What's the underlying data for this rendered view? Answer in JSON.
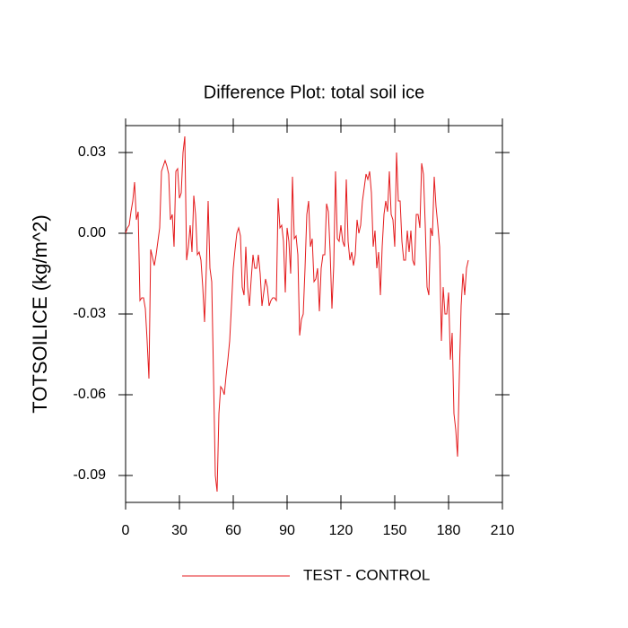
{
  "chart_data": {
    "type": "line",
    "title": "Difference Plot: total soil ice",
    "ylabel": "TOTSOILICE  (kg/m^2)",
    "xlim": [
      0,
      210
    ],
    "xticks": [
      0,
      30,
      60,
      90,
      120,
      150,
      180,
      210
    ],
    "ylim": [
      -0.1,
      0.04
    ],
    "yticks": [
      -0.09,
      -0.06,
      -0.03,
      {
        "value": 0,
        "label": "0.00"
      },
      0.03
    ],
    "x": [
      0,
      1,
      2,
      3,
      4,
      5,
      6,
      7,
      8,
      9,
      10,
      11,
      12,
      13,
      14,
      15,
      16,
      17,
      18,
      19,
      20,
      21,
      22,
      23,
      24,
      25,
      26,
      27,
      28,
      29,
      30,
      31,
      32,
      33,
      34,
      35,
      36,
      37,
      38,
      39,
      40,
      41,
      42,
      43,
      44,
      45,
      46,
      47,
      48,
      49,
      50,
      51,
      52,
      53,
      54,
      55,
      56,
      57,
      58,
      59,
      60,
      61,
      62,
      63,
      64,
      65,
      66,
      67,
      68,
      69,
      70,
      71,
      72,
      73,
      74,
      75,
      76,
      77,
      78,
      79,
      80,
      81,
      82,
      83,
      84,
      85,
      86,
      87,
      88,
      89,
      90,
      91,
      92,
      93,
      94,
      95,
      96,
      97,
      98,
      99,
      100,
      101,
      102,
      103,
      104,
      105,
      106,
      107,
      108,
      109,
      110,
      111,
      112,
      113,
      114,
      115,
      116,
      117,
      118,
      119,
      120,
      121,
      122,
      123,
      124,
      125,
      126,
      127,
      128,
      129,
      130,
      131,
      132,
      133,
      134,
      135,
      136,
      137,
      138,
      139,
      140,
      141,
      142,
      143,
      144,
      145,
      146,
      147,
      148,
      149,
      150,
      151,
      152,
      153,
      154,
      155,
      156,
      157,
      158,
      159,
      160,
      161,
      162,
      163,
      164,
      165,
      166,
      167,
      168,
      169,
      170,
      171,
      172,
      173,
      174,
      175,
      176,
      177,
      178,
      179,
      180,
      181,
      182,
      183,
      184,
      185,
      186,
      187,
      188,
      189,
      190,
      191
    ],
    "series": [
      {
        "name": "TEST - CONTROL",
        "color": "#e41a1c",
        "values": [
          0.0,
          0.002,
          0.003,
          0.008,
          0.012,
          0.019,
          0.005,
          0.008,
          -0.025,
          -0.024,
          -0.024,
          -0.028,
          -0.04,
          -0.054,
          -0.006,
          -0.009,
          -0.012,
          -0.008,
          -0.003,
          0.002,
          0.023,
          0.025,
          0.027,
          0.025,
          0.022,
          0.005,
          0.007,
          -0.005,
          0.023,
          0.024,
          0.013,
          0.015,
          0.03,
          0.036,
          -0.01,
          -0.005,
          0.003,
          -0.007,
          0.014,
          0.007,
          -0.008,
          -0.007,
          -0.01,
          -0.02,
          -0.033,
          -0.013,
          0.012,
          -0.013,
          -0.018,
          -0.053,
          -0.09,
          -0.096,
          -0.067,
          -0.057,
          -0.058,
          -0.06,
          -0.053,
          -0.047,
          -0.04,
          -0.027,
          -0.013,
          -0.006,
          0.0,
          0.002,
          -0.001,
          -0.02,
          -0.023,
          -0.005,
          -0.02,
          -0.027,
          -0.017,
          -0.008,
          -0.013,
          -0.013,
          -0.008,
          -0.015,
          -0.027,
          -0.022,
          -0.017,
          -0.02,
          -0.027,
          -0.025,
          -0.024,
          -0.024,
          -0.025,
          0.013,
          0.002,
          0.003,
          -0.003,
          -0.022,
          0.002,
          -0.003,
          -0.015,
          0.021,
          -0.002,
          -0.001,
          -0.008,
          -0.038,
          -0.032,
          -0.03,
          -0.013,
          0.007,
          0.012,
          -0.005,
          -0.002,
          -0.018,
          -0.017,
          -0.013,
          -0.029,
          -0.013,
          -0.008,
          -0.008,
          0.011,
          0.008,
          -0.007,
          -0.028,
          -0.012,
          0.023,
          -0.002,
          -0.003,
          0.003,
          -0.003,
          -0.005,
          0.02,
          -0.003,
          -0.01,
          -0.007,
          -0.012,
          -0.008,
          0.005,
          0.0,
          0.003,
          0.012,
          0.017,
          0.022,
          0.02,
          0.023,
          0.015,
          -0.005,
          0.001,
          -0.013,
          -0.007,
          -0.023,
          -0.005,
          0.007,
          0.012,
          0.008,
          0.023,
          0.007,
          0.005,
          -0.005,
          0.03,
          0.012,
          0.012,
          -0.003,
          -0.01,
          -0.01,
          0.001,
          -0.007,
          0.001,
          -0.01,
          -0.012,
          0.007,
          0.007,
          0.002,
          0.026,
          0.022,
          0.003,
          -0.02,
          -0.023,
          0.002,
          -0.001,
          0.021,
          0.01,
          0.003,
          -0.005,
          -0.04,
          -0.02,
          -0.03,
          -0.03,
          -0.022,
          -0.047,
          -0.037,
          -0.067,
          -0.073,
          -0.083,
          -0.053,
          -0.027,
          -0.015,
          -0.023,
          -0.013,
          -0.01
        ]
      }
    ]
  }
}
